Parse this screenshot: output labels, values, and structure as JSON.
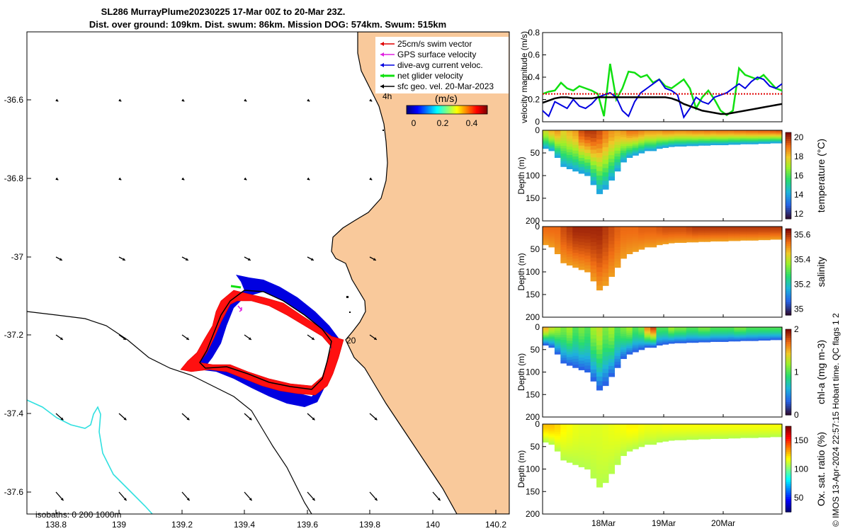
{
  "header": {
    "line1": "SL286 MurrayPlume20230225 17-Mar 00Z to 20-Mar 23Z.",
    "line2": "Dist. over ground: 109km. Dist. swum: 86km. Mission DOG: 574km. Swum: 515km"
  },
  "map": {
    "x_ticks": [
      "138.8",
      "139",
      "139.2",
      "139.4",
      "139.6",
      "139.8",
      "140",
      "140.2"
    ],
    "y_ticks": [
      "-36.6",
      "-36.8",
      "-37",
      "-37.2",
      "-37.4",
      "-37.6"
    ],
    "isobaths_label": "isobaths: 0   200  1000m",
    "annotation_4h": "4h",
    "annotation_20": "20",
    "legend": [
      {
        "label": "25cm/s swim vector",
        "color": "#e00000"
      },
      {
        "label": "GPS surface velocity",
        "color": "#e020e0"
      },
      {
        "label": "dive-avg current veloc.",
        "color": "#0000e0"
      },
      {
        "label": "net glider velocity",
        "color": "#10e010"
      },
      {
        "label": "sfc geo. vel. 20-Mar-2023",
        "color": "#000000"
      }
    ],
    "colorbar": {
      "title": "(m/s)",
      "ticks": [
        "0",
        "0.2",
        "0.4"
      ]
    },
    "land_color": "#f9c99b",
    "shelf_color": "#30e0e0"
  },
  "chart_data": [
    {
      "type": "line",
      "title": "",
      "ylabel": "velocity magnitude (m/s)",
      "ylim": [
        0,
        0.8
      ],
      "y_ticks": [
        "0",
        "0.2",
        "0.4",
        "0.6",
        "0.8"
      ],
      "series": [
        {
          "name": "net glider velocity",
          "color": "#10e010",
          "values": [
            0.25,
            0.27,
            0.28,
            0.35,
            0.3,
            0.28,
            0.32,
            0.3,
            0.28,
            0.25,
            0.05,
            0.52,
            0.2,
            0.3,
            0.45,
            0.44,
            0.4,
            0.42,
            0.35,
            0.38,
            0.32,
            0.3,
            0.34,
            0.38,
            0.3,
            0.12,
            0.22,
            0.28,
            0.2,
            0.1,
            0.06,
            0.1,
            0.48,
            0.42,
            0.4,
            0.38,
            0.42,
            0.36,
            0.3,
            0.28
          ]
        },
        {
          "name": "dive-avg current veloc.",
          "color": "#0000e0",
          "values": [
            0.1,
            0.05,
            0.18,
            0.15,
            0.12,
            0.2,
            0.14,
            0.12,
            0.16,
            0.22,
            0.24,
            0.26,
            0.22,
            0.1,
            0.05,
            0.18,
            0.26,
            0.3,
            0.34,
            0.38,
            0.3,
            0.28,
            0.24,
            0.04,
            0.12,
            0.22,
            0.18,
            0.16,
            0.22,
            0.24,
            0.26,
            0.3,
            0.34,
            0.3,
            0.36,
            0.4,
            0.38,
            0.32,
            0.3,
            0.34
          ]
        },
        {
          "name": "sfc geo. vel.",
          "color": "#000000",
          "values": [
            0.17,
            0.19,
            0.21,
            0.22,
            0.22,
            0.21,
            0.21,
            0.21,
            0.21,
            0.22,
            0.22,
            0.22,
            0.22,
            0.22,
            0.22,
            0.22,
            0.22,
            0.22,
            0.22,
            0.22,
            0.22,
            0.21,
            0.19,
            0.16,
            0.14,
            0.12,
            0.1,
            0.09,
            0.08,
            0.07,
            0.07,
            0.08,
            0.09,
            0.1,
            0.11,
            0.12,
            0.13,
            0.14,
            0.15,
            0.16
          ]
        },
        {
          "name": "25cm/s swim",
          "color": "#e00000",
          "values": [
            0.25,
            0.25,
            0.25,
            0.25,
            0.25,
            0.25,
            0.25,
            0.25,
            0.25,
            0.25,
            0.25,
            0.25,
            0.25,
            0.25,
            0.25,
            0.25,
            0.25,
            0.25,
            0.25,
            0.25,
            0.25,
            0.25,
            0.25,
            0.25,
            0.25,
            0.25,
            0.25,
            0.25,
            0.25,
            0.25,
            0.25,
            0.25,
            0.25,
            0.25,
            0.25,
            0.25,
            0.25,
            0.25,
            0.25,
            0.25
          ]
        }
      ]
    },
    {
      "type": "heatmap",
      "name": "temperature",
      "ylabel": "Depth (m)",
      "y_ticks": [
        "0",
        "50",
        "100",
        "150",
        "200"
      ],
      "colorbar_label": "temperature (°C)",
      "colorbar_ticks": [
        "12",
        "14",
        "16",
        "18",
        "20"
      ],
      "clim": [
        11.5,
        20.5
      ],
      "max_depth": [
        40,
        45,
        60,
        80,
        85,
        90,
        95,
        100,
        120,
        140,
        130,
        110,
        90,
        70,
        60,
        55,
        50,
        45,
        45,
        40,
        38,
        36,
        35,
        35,
        34,
        34,
        33,
        33,
        32,
        32,
        32,
        31,
        31,
        30,
        30,
        30,
        29,
        29,
        28,
        28
      ],
      "surface_values": [
        17.5,
        18.2,
        18.5,
        17.8,
        18.2,
        18.5,
        19.5,
        19.8,
        19.8,
        19.5,
        19.0,
        18.6,
        18.4,
        18.6,
        19.0,
        19.0,
        18.8,
        18.6,
        18.6,
        18.6,
        18.8,
        18.8,
        18.7,
        18.7,
        18.8,
        18.9,
        18.9,
        19.0,
        18.9,
        19.0,
        19.0,
        19.0,
        19.1,
        19.1,
        19.2,
        19.2,
        19.3,
        19.3,
        19.4,
        19.5
      ],
      "deep_value": 14.0
    },
    {
      "type": "heatmap",
      "name": "salinity",
      "ylabel": "Depth (m)",
      "y_ticks": [
        "0",
        "50",
        "100",
        "150",
        "200"
      ],
      "colorbar_label": "salinity",
      "colorbar_ticks": [
        "35",
        "35.2",
        "35.4",
        "35.6"
      ],
      "clim": [
        34.95,
        35.65
      ],
      "max_depth": [
        40,
        45,
        60,
        80,
        85,
        90,
        95,
        100,
        120,
        140,
        130,
        110,
        90,
        70,
        60,
        55,
        50,
        45,
        45,
        40,
        38,
        36,
        35,
        35,
        34,
        34,
        33,
        33,
        32,
        32,
        32,
        31,
        31,
        30,
        30,
        30,
        29,
        29,
        28,
        28
      ],
      "surface_values": [
        35.55,
        35.55,
        35.55,
        35.58,
        35.6,
        35.62,
        35.62,
        35.62,
        35.62,
        35.62,
        35.6,
        35.58,
        35.56,
        35.55,
        35.55,
        35.55,
        35.56,
        35.56,
        35.56,
        35.57,
        35.58,
        35.58,
        35.58,
        35.58,
        35.59,
        35.6,
        35.6,
        35.6,
        35.6,
        35.6,
        35.6,
        35.6,
        35.6,
        35.6,
        35.6,
        35.6,
        35.6,
        35.6,
        35.6,
        35.6
      ],
      "deep_value": 35.5
    },
    {
      "type": "heatmap",
      "name": "chl-a",
      "ylabel": "Depth (m)",
      "y_ticks": [
        "0",
        "50",
        "100",
        "150",
        "200"
      ],
      "colorbar_label": "chl-a (mg m-3)",
      "colorbar_ticks": [
        "0",
        "1",
        "2"
      ],
      "clim": [
        0,
        2
      ],
      "max_depth": [
        40,
        45,
        60,
        80,
        85,
        90,
        95,
        100,
        120,
        140,
        130,
        110,
        90,
        70,
        60,
        55,
        50,
        45,
        45,
        40,
        38,
        36,
        35,
        35,
        34,
        34,
        33,
        33,
        32,
        32,
        32,
        31,
        31,
        30,
        30,
        30,
        29,
        29,
        28,
        28
      ],
      "surface_values": [
        1.5,
        1.3,
        1.2,
        1.1,
        1.2,
        1.0,
        1.1,
        1.0,
        1.2,
        1.3,
        1.1,
        1.2,
        1.0,
        1.1,
        1.2,
        1.0,
        1.1,
        1.6,
        1.8,
        1.0,
        1.0,
        1.2,
        1.1,
        1.1,
        1.0,
        1.0,
        1.1,
        1.1,
        1.0,
        1.0,
        1.0,
        1.0,
        1.1,
        1.1,
        1.0,
        1.0,
        1.0,
        1.0,
        1.0,
        1.0
      ],
      "deep_value": 0.3
    },
    {
      "type": "heatmap",
      "name": "oxygen",
      "ylabel": "Depth (m)",
      "y_ticks": [
        "0",
        "50",
        "100",
        "150",
        "200"
      ],
      "colorbar_label": "Ox. sat. ratio (%)",
      "colorbar_ticks": [
        "50",
        "100",
        "150"
      ],
      "clim": [
        25,
        175
      ],
      "max_depth": [
        40,
        45,
        60,
        80,
        85,
        90,
        95,
        100,
        120,
        140,
        130,
        110,
        90,
        70,
        60,
        55,
        50,
        45,
        45,
        40,
        38,
        36,
        35,
        35,
        34,
        34,
        33,
        33,
        32,
        32,
        32,
        31,
        31,
        30,
        30,
        30,
        29,
        29,
        28,
        28
      ],
      "surface_values": [
        128,
        128,
        125,
        120,
        118,
        116,
        115,
        115,
        114,
        114,
        115,
        116,
        117,
        118,
        120,
        120,
        118,
        117,
        117,
        117,
        118,
        118,
        118,
        118,
        118,
        118,
        118,
        118,
        118,
        118,
        118,
        118,
        118,
        118,
        118,
        118,
        118,
        118,
        118,
        118
      ],
      "deep_value": 108,
      "x_ticks": [
        "18Mar",
        "19Mar",
        "20Mar"
      ]
    }
  ],
  "side_credit": "© IMOS 13-Apr-2024 22:57:15 Hobart time. QC flags 1  2"
}
